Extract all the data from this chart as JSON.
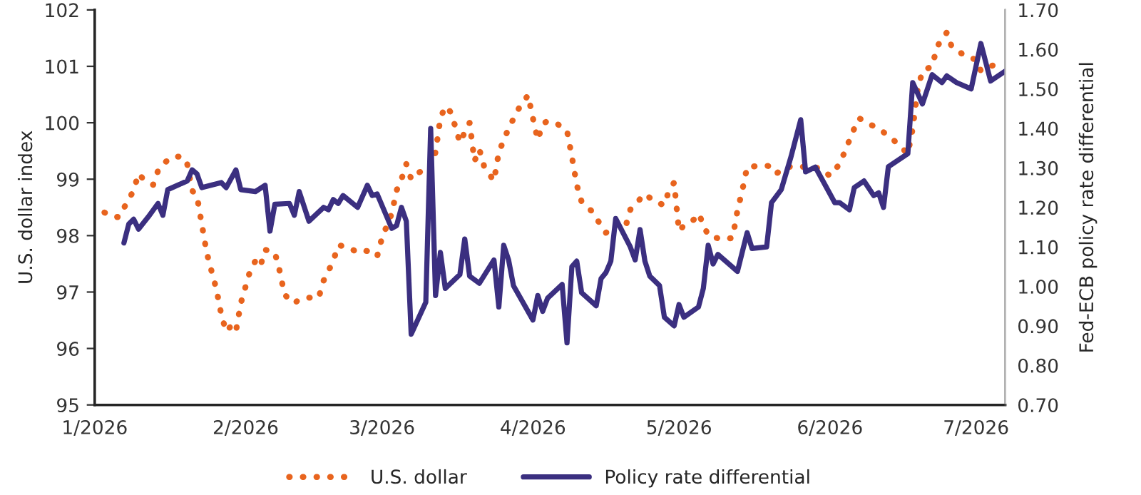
{
  "chart_data": {
    "type": "line",
    "ylabel": "U.S. dollar index",
    "y2label": "Fed-ECB policy rate differential",
    "xlim": [
      "2026-01-01",
      "2026-07-07"
    ],
    "xticks": [
      {
        "value": "2026-01-01",
        "label": "1/2026"
      },
      {
        "value": "2026-02-01",
        "label": "2/2026"
      },
      {
        "value": "2026-03-01",
        "label": "3/2026"
      },
      {
        "value": "2026-04-01",
        "label": "4/2026"
      },
      {
        "value": "2026-05-01",
        "label": "5/2026"
      },
      {
        "value": "2026-06-01",
        "label": "6/2026"
      },
      {
        "value": "2026-07-01",
        "label": "7/2026"
      }
    ],
    "ylim": [
      95,
      102
    ],
    "yticks": [
      95,
      96,
      97,
      98,
      99,
      100,
      101,
      102
    ],
    "y2lim": [
      0.7,
      1.7
    ],
    "y2ticks": [
      {
        "value": 0.7,
        "label": "0.70"
      },
      {
        "value": 0.8,
        "label": "0.80"
      },
      {
        "value": 0.9,
        "label": "0.90"
      },
      {
        "value": 1.0,
        "label": "1.00"
      },
      {
        "value": 1.1,
        "label": "1.10"
      },
      {
        "value": 1.2,
        "label": "1.20"
      },
      {
        "value": 1.3,
        "label": "1.30"
      },
      {
        "value": 1.4,
        "label": "1.40"
      },
      {
        "value": 1.5,
        "label": "1.50"
      },
      {
        "value": 1.6,
        "label": "1.60"
      },
      {
        "value": 1.7,
        "label": "1.70"
      }
    ],
    "grid": false,
    "legend": "bottom",
    "series": [
      {
        "name": "U.S. dollar",
        "color": "#e8641e",
        "line_style": "dotted",
        "x": [
          "2026-01-03",
          "2026-01-05",
          "2026-01-06",
          "2026-01-07",
          "2026-01-09",
          "2026-01-10",
          "2026-01-11",
          "2026-01-13",
          "2026-01-14",
          "2026-01-15",
          "2026-01-17",
          "2026-01-19",
          "2026-01-20",
          "2026-01-21",
          "2026-01-22",
          "2026-01-23",
          "2026-01-24",
          "2026-01-25",
          "2026-01-26",
          "2026-01-27",
          "2026-01-28",
          "2026-01-29",
          "2026-01-30",
          "2026-01-31",
          "2026-02-01",
          "2026-02-02",
          "2026-02-03",
          "2026-02-04",
          "2026-02-05",
          "2026-02-07",
          "2026-02-08",
          "2026-02-09",
          "2026-02-11",
          "2026-02-12",
          "2026-02-14",
          "2026-02-16",
          "2026-02-17",
          "2026-02-19",
          "2026-02-20",
          "2026-02-22",
          "2026-02-24",
          "2026-02-26",
          "2026-02-28",
          "2026-03-01",
          "2026-03-03",
          "2026-03-04",
          "2026-03-05",
          "2026-03-06",
          "2026-03-07",
          "2026-03-08",
          "2026-03-11",
          "2026-03-12",
          "2026-03-13",
          "2026-03-14",
          "2026-03-15",
          "2026-03-16",
          "2026-03-17",
          "2026-03-18",
          "2026-03-19",
          "2026-03-20",
          "2026-03-21",
          "2026-03-22",
          "2026-03-24",
          "2026-03-25",
          "2026-03-27",
          "2026-03-29",
          "2026-03-31",
          "2026-04-01",
          "2026-04-02",
          "2026-04-03",
          "2026-04-04",
          "2026-04-06",
          "2026-04-08",
          "2026-04-09",
          "2026-04-10",
          "2026-04-11",
          "2026-04-13",
          "2026-04-16",
          "2026-04-18",
          "2026-04-20",
          "2026-04-21",
          "2026-04-24",
          "2026-04-26",
          "2026-04-28",
          "2026-04-29",
          "2026-04-30",
          "2026-05-01",
          "2026-05-02",
          "2026-05-04",
          "2026-05-05",
          "2026-05-06",
          "2026-05-07",
          "2026-05-10",
          "2026-05-12",
          "2026-05-13",
          "2026-05-14",
          "2026-05-15",
          "2026-05-19",
          "2026-05-20",
          "2026-05-21",
          "2026-05-23",
          "2026-05-26",
          "2026-05-28",
          "2026-05-30",
          "2026-06-01",
          "2026-06-03",
          "2026-06-04",
          "2026-06-06",
          "2026-06-07",
          "2026-06-09",
          "2026-06-11",
          "2026-06-14",
          "2026-06-17",
          "2026-06-18",
          "2026-06-19",
          "2026-06-20",
          "2026-06-22",
          "2026-06-23",
          "2026-06-25",
          "2026-06-26",
          "2026-06-29",
          "2026-07-01",
          "2026-07-02",
          "2026-07-04",
          "2026-07-06"
        ],
        "values": [
          98.41,
          98.33,
          98.33,
          98.49,
          98.8,
          99.1,
          99.0,
          98.9,
          99.15,
          99.27,
          99.4,
          99.4,
          99.27,
          98.8,
          98.7,
          98.2,
          97.7,
          97.37,
          97.05,
          96.6,
          96.3,
          96.4,
          96.3,
          96.8,
          97.1,
          97.4,
          97.55,
          97.45,
          97.75,
          97.7,
          97.37,
          96.95,
          96.8,
          96.87,
          96.9,
          96.9,
          97.2,
          97.55,
          97.83,
          97.8,
          97.7,
          97.73,
          97.63,
          97.96,
          98.39,
          98.8,
          99.0,
          99.27,
          99.0,
          99.1,
          99.2,
          99.48,
          100.08,
          100.29,
          100.2,
          99.95,
          99.65,
          99.83,
          100.0,
          99.32,
          99.53,
          99.22,
          98.97,
          99.48,
          99.9,
          100.24,
          100.49,
          100.08,
          99.7,
          99.98,
          100.03,
          99.98,
          99.86,
          99.4,
          98.9,
          98.6,
          98.44,
          98.05,
          98.2,
          98.15,
          98.46,
          98.74,
          98.6,
          98.54,
          98.82,
          98.94,
          98.08,
          98.18,
          98.28,
          98.39,
          98.2,
          98.0,
          97.93,
          97.96,
          98.44,
          98.8,
          99.22,
          99.24,
          99.22,
          99.1,
          99.22,
          99.22,
          99.22,
          99.19,
          99.06,
          99.27,
          99.48,
          99.9,
          100.08,
          99.98,
          99.9,
          99.7,
          99.45,
          99.9,
          100.58,
          100.92,
          101.0,
          101.35,
          101.6,
          101.35,
          101.17,
          101.12,
          100.92,
          101.0,
          101.07
        ]
      },
      {
        "name": "Policy rate differential",
        "color": "#3b2f80",
        "line_style": "solid",
        "axis": "y2",
        "x": [
          "2026-01-07",
          "2026-01-08",
          "2026-01-09",
          "2026-01-10",
          "2026-01-12",
          "2026-01-14",
          "2026-01-15",
          "2026-01-16",
          "2026-01-20",
          "2026-01-21",
          "2026-01-22",
          "2026-01-23",
          "2026-01-27",
          "2026-01-28",
          "2026-01-30",
          "2026-01-31",
          "2026-02-03",
          "2026-02-05",
          "2026-02-06",
          "2026-02-07",
          "2026-02-10",
          "2026-02-11",
          "2026-02-12",
          "2026-02-14",
          "2026-02-17",
          "2026-02-18",
          "2026-02-19",
          "2026-02-20",
          "2026-02-21",
          "2026-02-24",
          "2026-02-26",
          "2026-02-27",
          "2026-02-28",
          "2026-03-03",
          "2026-03-04",
          "2026-03-05",
          "2026-03-06",
          "2026-03-07",
          "2026-03-10",
          "2026-03-11",
          "2026-03-12",
          "2026-03-13",
          "2026-03-14",
          "2026-03-17",
          "2026-03-18",
          "2026-03-19",
          "2026-03-21",
          "2026-03-24",
          "2026-03-25",
          "2026-03-26",
          "2026-03-27",
          "2026-03-28",
          "2026-04-01",
          "2026-04-02",
          "2026-04-03",
          "2026-04-04",
          "2026-04-07",
          "2026-04-08",
          "2026-04-09",
          "2026-04-10",
          "2026-04-11",
          "2026-04-14",
          "2026-04-15",
          "2026-04-16",
          "2026-04-17",
          "2026-04-18",
          "2026-04-21",
          "2026-04-22",
          "2026-04-23",
          "2026-04-24",
          "2026-04-25",
          "2026-04-27",
          "2026-04-28",
          "2026-04-30",
          "2026-05-01",
          "2026-05-02",
          "2026-05-05",
          "2026-05-06",
          "2026-05-07",
          "2026-05-08",
          "2026-05-09",
          "2026-05-13",
          "2026-05-15",
          "2026-05-16",
          "2026-05-19",
          "2026-05-20",
          "2026-05-22",
          "2026-05-24",
          "2026-05-26",
          "2026-05-27",
          "2026-05-29",
          "2026-06-02",
          "2026-06-03",
          "2026-06-05",
          "2026-06-06",
          "2026-06-08",
          "2026-06-10",
          "2026-06-11",
          "2026-06-12",
          "2026-06-13",
          "2026-06-16",
          "2026-06-17",
          "2026-06-18",
          "2026-06-20",
          "2026-06-22",
          "2026-06-24",
          "2026-06-25",
          "2026-06-27",
          "2026-06-30",
          "2026-07-02",
          "2026-07-04",
          "2026-07-07"
        ],
        "values": [
          1.11,
          1.158,
          1.17,
          1.145,
          1.176,
          1.21,
          1.18,
          1.245,
          1.267,
          1.295,
          1.285,
          1.25,
          1.263,
          1.25,
          1.295,
          1.245,
          1.24,
          1.256,
          1.14,
          1.208,
          1.21,
          1.18,
          1.24,
          1.165,
          1.2,
          1.194,
          1.22,
          1.21,
          1.23,
          1.2,
          1.256,
          1.23,
          1.234,
          1.147,
          1.154,
          1.2,
          1.165,
          0.879,
          0.96,
          1.4,
          0.977,
          1.086,
          0.995,
          1.03,
          1.12,
          1.026,
          1.008,
          1.067,
          0.948,
          1.104,
          1.067,
          1.002,
          0.915,
          0.977,
          0.937,
          0.97,
          1.005,
          0.857,
          1.05,
          1.064,
          0.984,
          0.951,
          1.02,
          1.035,
          1.064,
          1.172,
          1.1,
          1.067,
          1.144,
          1.064,
          1.026,
          1.002,
          0.922,
          0.9,
          0.954,
          0.922,
          0.948,
          0.995,
          1.104,
          1.057,
          1.081,
          1.038,
          1.136,
          1.096,
          1.1,
          1.212,
          1.245,
          1.328,
          1.422,
          1.29,
          1.302,
          1.212,
          1.212,
          1.194,
          1.25,
          1.267,
          1.23,
          1.237,
          1.2,
          1.303,
          1.328,
          1.336,
          1.516,
          1.462,
          1.536,
          1.516,
          1.533,
          1.516,
          1.5,
          1.615,
          1.52,
          1.545
        ]
      }
    ]
  }
}
